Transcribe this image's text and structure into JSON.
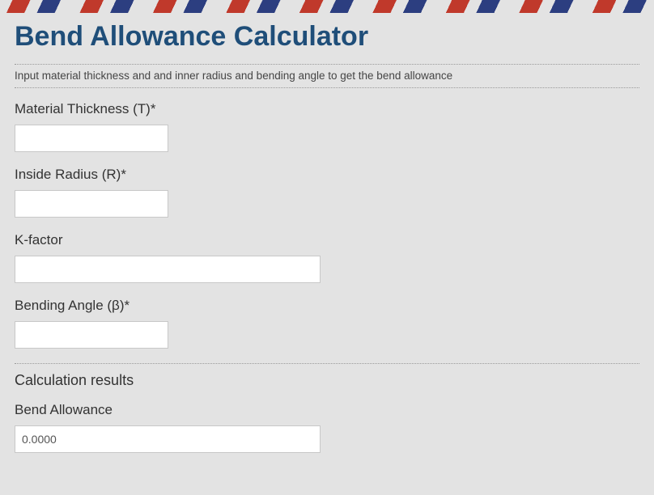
{
  "header": {
    "title": "Bend Allowance Calculator",
    "subtitle": "Input material thickness and and inner radius and bending angle to get the bend allowance"
  },
  "fields": {
    "thickness": {
      "label": "Material Thickness (T)*",
      "value": ""
    },
    "radius": {
      "label": "Inside Radius (R)*",
      "value": ""
    },
    "kfactor": {
      "label": "K-factor",
      "value": ""
    },
    "angle": {
      "label": "Bending Angle (β)*",
      "value": ""
    }
  },
  "results": {
    "section_label": "Calculation results",
    "bend_allowance": {
      "label": "Bend Allowance",
      "value": "0.0000"
    }
  },
  "colors": {
    "background": "#e3e3e3",
    "heading": "#1f4e79",
    "text": "#333333",
    "stripe_red": "#c0392b",
    "stripe_blue": "#2c3e80",
    "input_border": "#c8c8c8",
    "input_bg": "#ffffff"
  },
  "typography": {
    "heading_fontsize": 34,
    "heading_weight": 700,
    "label_fontsize": 17,
    "subtitle_fontsize": 13.5
  }
}
